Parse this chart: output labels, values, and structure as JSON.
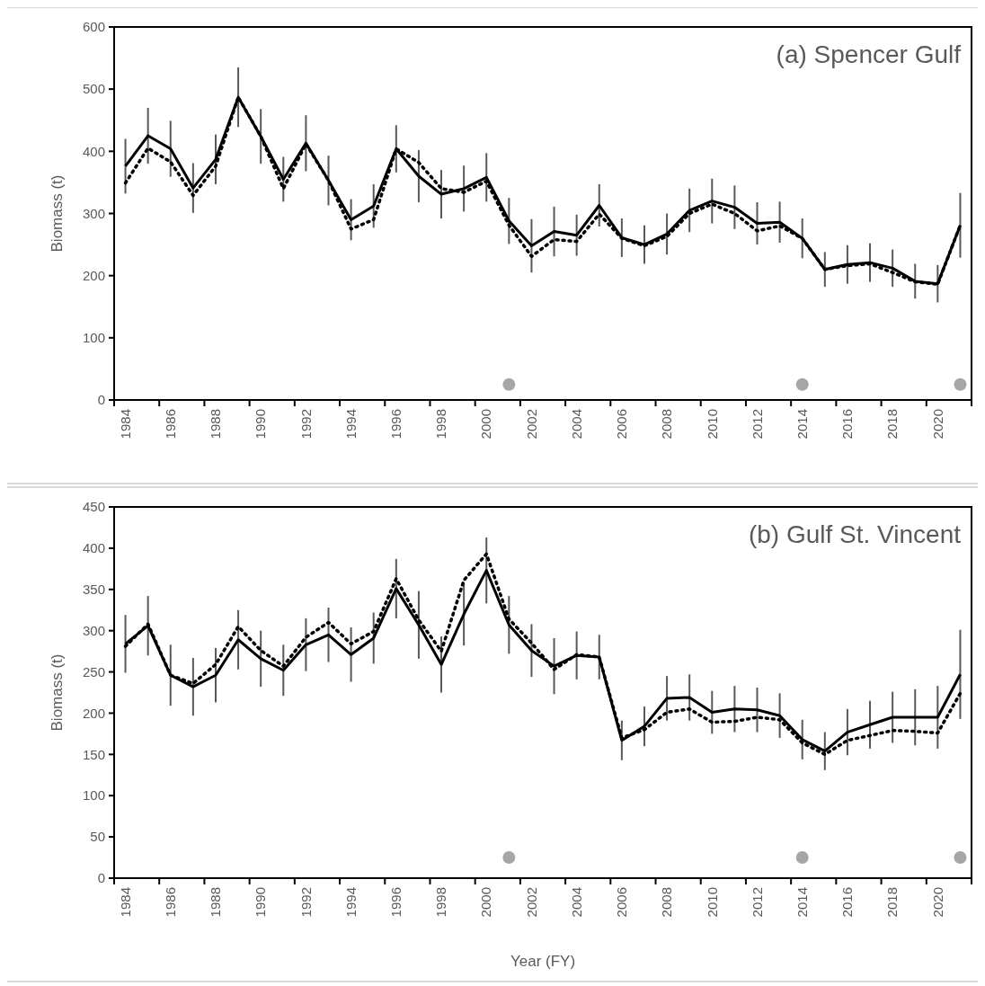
{
  "chart_data": [
    {
      "type": "line",
      "title": "(a) Spencer Gulf",
      "ylabel": "Biomass (t)",
      "categories": [
        "1984",
        null,
        "1986",
        null,
        "1988",
        null,
        "1990",
        null,
        "1992",
        null,
        "1994",
        null,
        "1996",
        null,
        "1998",
        null,
        "2000",
        null,
        "2002",
        null,
        "2004",
        null,
        "2006",
        null,
        "2008",
        null,
        "2010",
        null,
        "2012",
        null,
        "2014",
        null,
        "2016",
        null,
        "2018",
        null,
        "2020",
        null
      ],
      "ylim": [
        0,
        600
      ],
      "yticks": [
        0,
        100,
        200,
        300,
        400,
        500,
        600
      ],
      "series": [
        {
          "color": "#000000",
          "line_style": "solid",
          "values": [
            376,
            425,
            404,
            341,
            387,
            487,
            424,
            355,
            413,
            353,
            290,
            312,
            404,
            360,
            331,
            340,
            358,
            288,
            248,
            271,
            265,
            313,
            261,
            250,
            267,
            305,
            320,
            310,
            284,
            286,
            260,
            210,
            218,
            221,
            212,
            191,
            187,
            281
          ],
          "errors": [
            44,
            45,
            45,
            40,
            40,
            48,
            44,
            36,
            45,
            40,
            33,
            35,
            38,
            42,
            39,
            37,
            39,
            37,
            43,
            40,
            33,
            34,
            31,
            31,
            33,
            35,
            36,
            35,
            34,
            33,
            32,
            28,
            31,
            31,
            30,
            28,
            30,
            52
          ]
        },
        {
          "color": "#000000",
          "line_style": "dotted",
          "values": [
            349,
            405,
            383,
            329,
            376,
            487,
            424,
            340,
            412,
            353,
            275,
            290,
            404,
            382,
            340,
            334,
            352,
            281,
            231,
            258,
            255,
            299,
            260,
            248,
            263,
            300,
            315,
            300,
            272,
            280,
            260,
            210,
            216,
            219,
            205,
            190,
            186,
            281
          ]
        },
        {
          "type": "scatter",
          "color": "#a6a6a6",
          "values": [
            null,
            null,
            null,
            null,
            null,
            null,
            null,
            null,
            null,
            null,
            null,
            null,
            null,
            null,
            null,
            null,
            null,
            25,
            null,
            null,
            null,
            null,
            null,
            null,
            null,
            null,
            null,
            null,
            null,
            null,
            25,
            null,
            null,
            null,
            null,
            null,
            null,
            25
          ]
        }
      ]
    },
    {
      "type": "line",
      "title": "(b) Gulf St. Vincent",
      "ylabel": "Biomass (t)",
      "xlabel": "Year (FY)",
      "categories": [
        "1984",
        null,
        "1986",
        null,
        "1988",
        null,
        "1990",
        null,
        "1992",
        null,
        "1994",
        null,
        "1996",
        null,
        "1998",
        null,
        "2000",
        null,
        "2002",
        null,
        "2004",
        null,
        "2006",
        null,
        "2008",
        null,
        "2010",
        null,
        "2012",
        null,
        "2014",
        null,
        "2016",
        null,
        "2018",
        null,
        "2020",
        null
      ],
      "ylim": [
        0,
        450
      ],
      "yticks": [
        0,
        50,
        100,
        150,
        200,
        250,
        300,
        350,
        400,
        450
      ],
      "series": [
        {
          "color": "#000000",
          "line_style": "solid",
          "values": [
            284,
            306,
            246,
            232,
            246,
            289,
            266,
            252,
            283,
            295,
            271,
            291,
            351,
            307,
            259,
            320,
            373,
            307,
            276,
            257,
            270,
            268,
            167,
            184,
            218,
            219,
            201,
            205,
            204,
            197,
            168,
            154,
            177,
            186,
            195,
            195,
            195,
            247
          ],
          "errors": [
            35,
            36,
            37,
            35,
            33,
            36,
            34,
            31,
            32,
            33,
            33,
            31,
            36,
            41,
            34,
            38,
            40,
            35,
            32,
            34,
            29,
            27,
            24,
            24,
            27,
            28,
            26,
            28,
            27,
            27,
            24,
            23,
            28,
            29,
            31,
            34,
            38,
            54
          ]
        },
        {
          "color": "#000000",
          "line_style": "dotted",
          "values": [
            281,
            308,
            246,
            236,
            259,
            305,
            276,
            257,
            292,
            310,
            284,
            299,
            363,
            313,
            275,
            361,
            393,
            314,
            285,
            253,
            271,
            268,
            170,
            180,
            201,
            205,
            189,
            190,
            195,
            192,
            164,
            150,
            167,
            173,
            179,
            178,
            176,
            224
          ]
        },
        {
          "type": "scatter",
          "color": "#a6a6a6",
          "values": [
            null,
            null,
            null,
            null,
            null,
            null,
            null,
            null,
            null,
            null,
            null,
            null,
            null,
            null,
            null,
            null,
            null,
            25,
            null,
            null,
            null,
            null,
            null,
            null,
            null,
            null,
            null,
            null,
            null,
            null,
            25,
            null,
            null,
            null,
            null,
            null,
            null,
            25
          ]
        }
      ]
    }
  ]
}
